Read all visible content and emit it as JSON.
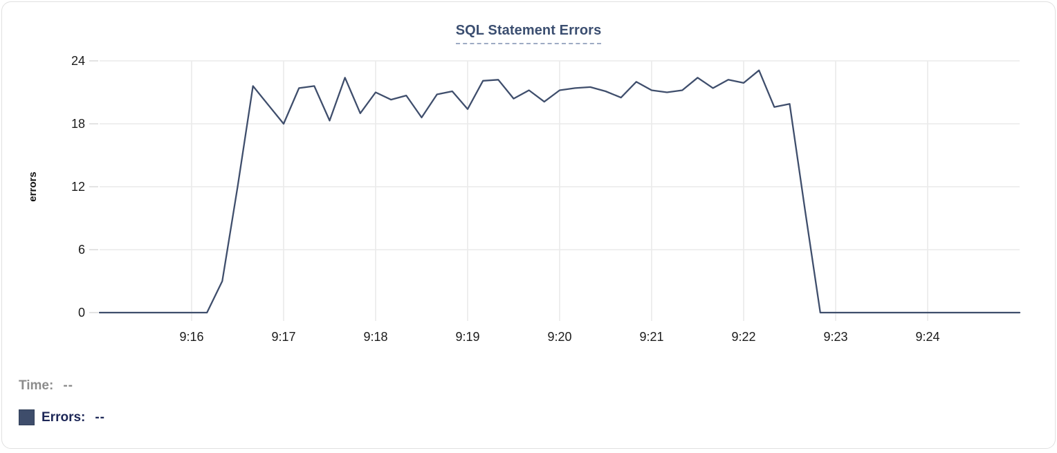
{
  "card": {
    "background": "#ffffff",
    "border_color": "#e0e0e0"
  },
  "header": {
    "title": "SQL Statement Errors",
    "title_color": "#3b4e70",
    "underline_style": "dashed",
    "underline_color": "#9dabc3"
  },
  "legend": {
    "time_label": "Time:",
    "time_value": "--",
    "errors_label": "Errors:",
    "errors_value": "--",
    "time_color": "#8c8c8c",
    "errors_color": "#1d2757",
    "swatch_color": "#3e4d6b"
  },
  "chart_data": {
    "type": "line",
    "title": "SQL Statement Errors",
    "xlabel": "",
    "ylabel": "errors",
    "ylim": [
      0,
      24
    ],
    "yticks": [
      0,
      6,
      12,
      18,
      24
    ],
    "xtick_labels": [
      "9:16",
      "9:17",
      "9:18",
      "9:19",
      "9:20",
      "9:21",
      "9:22",
      "9:23",
      "9:24"
    ],
    "x_range": [
      "9:15:00",
      "9:25:00"
    ],
    "sample_interval_seconds": 10,
    "grid": true,
    "legend_position": "bottom-left",
    "line_color": "#3f4e6c",
    "grid_color": "#eaeaea",
    "tick_text_color": "#1b1b1b",
    "x": [
      "9:15:00",
      "9:15:10",
      "9:15:20",
      "9:15:30",
      "9:15:40",
      "9:15:50",
      "9:16:00",
      "9:16:10",
      "9:16:20",
      "9:16:30",
      "9:16:40",
      "9:16:50",
      "9:17:00",
      "9:17:10",
      "9:17:20",
      "9:17:30",
      "9:17:40",
      "9:17:50",
      "9:18:00",
      "9:18:10",
      "9:18:20",
      "9:18:30",
      "9:18:40",
      "9:18:50",
      "9:19:00",
      "9:19:10",
      "9:19:20",
      "9:19:30",
      "9:19:40",
      "9:19:50",
      "9:20:00",
      "9:20:10",
      "9:20:20",
      "9:20:30",
      "9:20:40",
      "9:20:50",
      "9:21:00",
      "9:21:10",
      "9:21:20",
      "9:21:30",
      "9:21:40",
      "9:21:50",
      "9:22:00",
      "9:22:10",
      "9:22:20",
      "9:22:30",
      "9:22:40",
      "9:22:50",
      "9:23:00",
      "9:23:10",
      "9:23:20",
      "9:23:30",
      "9:23:40",
      "9:23:50",
      "9:24:00",
      "9:24:10",
      "9:24:20",
      "9:24:30",
      "9:24:40",
      "9:24:50",
      "9:25:00"
    ],
    "series": [
      {
        "name": "Errors",
        "values": [
          0,
          0,
          0,
          0,
          0,
          0,
          0,
          0,
          3,
          12,
          21.6,
          19.8,
          18,
          21.4,
          21.6,
          18.3,
          22.4,
          19,
          21,
          20.3,
          20.7,
          18.6,
          20.8,
          21.1,
          19.4,
          22.1,
          22.2,
          20.4,
          21.2,
          20.1,
          21.2,
          21.4,
          21.5,
          21.1,
          20.5,
          22,
          21.2,
          21,
          21.2,
          22.4,
          21.4,
          22.2,
          21.9,
          23.1,
          19.6,
          19.9,
          9.8,
          0,
          0,
          0,
          0,
          0,
          0,
          0,
          0,
          0,
          0,
          0,
          0,
          0,
          0
        ]
      }
    ]
  }
}
